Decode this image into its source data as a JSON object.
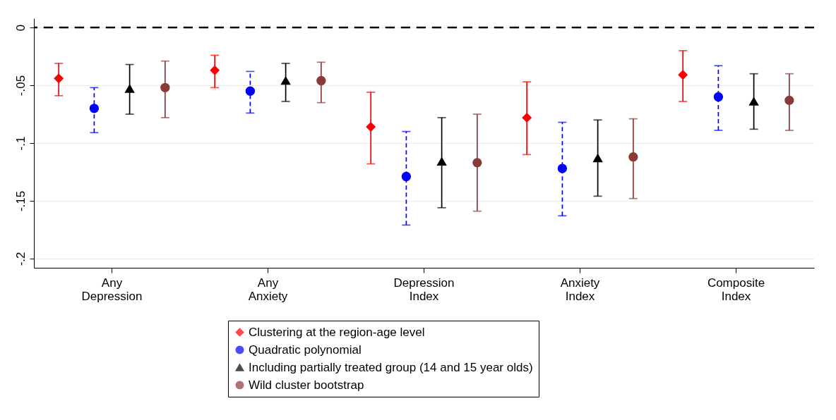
{
  "chart_data": {
    "type": "scatter",
    "categories": [
      "Any\nDepression",
      "Any\nAnxiety",
      "Depression\nIndex",
      "Anxiety\nIndex",
      "Composite\nIndex"
    ],
    "series": [
      {
        "name": "Clustering at the region-age level",
        "color": "#ff0000",
        "marker": "diamond",
        "values": [
          -0.044,
          -0.037,
          -0.086,
          -0.078,
          -0.041
        ],
        "errors": [
          [
            -0.059,
            -0.031
          ],
          [
            -0.052,
            -0.024
          ],
          [
            -0.118,
            -0.056
          ],
          [
            -0.11,
            -0.047
          ],
          [
            -0.064,
            -0.02
          ]
        ]
      },
      {
        "name": "Quadratic polynomial",
        "color": "#0000ff",
        "marker": "circle",
        "line_style": "dashed",
        "values": [
          -0.07,
          -0.055,
          -0.129,
          -0.122,
          -0.06
        ],
        "errors": [
          [
            -0.091,
            -0.052
          ],
          [
            -0.074,
            -0.038
          ],
          [
            -0.171,
            -0.09
          ],
          [
            -0.163,
            -0.082
          ],
          [
            -0.089,
            -0.033
          ]
        ]
      },
      {
        "name": "Including partially treated group (14 and 15 year olds)",
        "color": "#000000",
        "marker": "triangle",
        "values": [
          -0.053,
          -0.046,
          -0.116,
          -0.113,
          -0.064
        ],
        "errors": [
          [
            -0.075,
            -0.032
          ],
          [
            -0.064,
            -0.031
          ],
          [
            -0.156,
            -0.078
          ],
          [
            -0.146,
            -0.08
          ],
          [
            -0.088,
            -0.04
          ]
        ]
      },
      {
        "name": "Wild cluster bootstrap",
        "color": "#8b3a3a",
        "marker": "circle",
        "values": [
          -0.052,
          -0.046,
          -0.117,
          -0.112,
          -0.063
        ],
        "errors": [
          [
            -0.078,
            -0.029
          ],
          [
            -0.065,
            -0.03
          ],
          [
            -0.159,
            -0.075
          ],
          [
            -0.148,
            -0.079
          ],
          [
            -0.089,
            -0.04
          ]
        ]
      }
    ],
    "ylim": [
      -0.208,
      0.008
    ],
    "yticks": [
      {
        "value": 0,
        "label": "0"
      },
      {
        "value": -0.05,
        "label": "-.05"
      },
      {
        "value": -0.1,
        "label": "-.1"
      },
      {
        "value": -0.15,
        "label": "-.15"
      },
      {
        "value": -0.2,
        "label": "-.2"
      }
    ],
    "ref_lines": [
      {
        "axis": "y",
        "value": 0,
        "color": "#000000",
        "line_style": "dashed"
      }
    ],
    "grid": "y",
    "legend": "bottom"
  }
}
